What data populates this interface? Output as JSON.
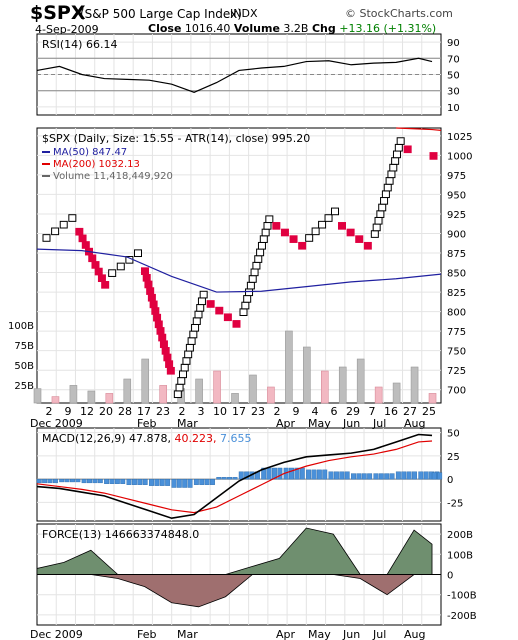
{
  "header": {
    "symbol": "$SPX",
    "description": "(S&P 500 Large Cap Index)",
    "exchange": "INDX",
    "brand": "© StockCharts.com",
    "date": "4-Sep-2009",
    "close_label": "Close",
    "close_value": "1016.40",
    "volume_label": "Volume",
    "volume_value": "3.2B",
    "chg_label": "Chg",
    "chg_value": "+13.16 (+1.31%)",
    "chg_color": "#008000"
  },
  "colors": {
    "up_box": "#ffffff",
    "down_box": "#e00040",
    "ma50": "#2020a0",
    "ma200": "#e00000",
    "volume_up": "#bdbdbd",
    "volume_down": "#f2b8c2",
    "macd_line": "#000000",
    "signal_line": "#e00000",
    "histogram": "#4a90d9",
    "force_pos": "#6f8f6f",
    "force_neg": "#9f6f6f"
  },
  "chart_data": [
    {
      "type": "line",
      "panel": "rsi",
      "label": "RSI(14) 66.14",
      "ylim": [
        0,
        100
      ],
      "ticks": [
        90,
        70,
        50,
        30,
        10
      ],
      "reference_lines": [
        70,
        50,
        30
      ],
      "x": [
        0,
        5,
        10,
        15,
        20,
        25,
        30,
        35,
        40,
        45,
        50,
        55,
        60,
        65,
        70,
        75,
        80,
        85,
        88
      ],
      "values": [
        55,
        60,
        50,
        45,
        44,
        43,
        38,
        28,
        40,
        55,
        58,
        60,
        66,
        67,
        62,
        64,
        65,
        70,
        66
      ]
    },
    {
      "type": "point-and-figure",
      "panel": "price",
      "label": "$SPX (Daily, Size: 15.55 - ATR(14), close) 995.20",
      "ylim": [
        683,
        1035
      ],
      "ticks": [
        1025,
        1000,
        975,
        950,
        925,
        900,
        875,
        850,
        825,
        800,
        775,
        750,
        725,
        700
      ],
      "volume_ticks": [
        "100B",
        "75B",
        "50B",
        "25B"
      ],
      "columns": [
        {
          "dir": "up",
          "low": 890,
          "high": 925
        },
        {
          "dir": "down",
          "low": 830,
          "high": 910
        },
        {
          "dir": "up",
          "low": 845,
          "high": 875
        },
        {
          "dir": "down",
          "low": 720,
          "high": 860
        },
        {
          "dir": "up",
          "low": 690,
          "high": 830
        },
        {
          "dir": "down",
          "low": 780,
          "high": 815
        },
        {
          "dir": "up",
          "low": 795,
          "high": 920
        },
        {
          "dir": "down",
          "low": 880,
          "high": 910
        },
        {
          "dir": "up",
          "low": 890,
          "high": 930
        },
        {
          "dir": "down",
          "low": 880,
          "high": 915
        },
        {
          "dir": "up",
          "low": 895,
          "high": 1025
        },
        {
          "dir": "down",
          "low": 995,
          "high": 1010
        }
      ],
      "series": [
        {
          "name": "MA(50) 847.47",
          "x": [
            0,
            10,
            20,
            30,
            40,
            50,
            60,
            70,
            80,
            90
          ],
          "values": [
            880,
            878,
            870,
            845,
            825,
            826,
            832,
            838,
            842,
            848
          ]
        },
        {
          "name": "MA(200) 1032.13",
          "x": [
            80,
            84,
            88,
            90
          ],
          "values": [
            1035,
            1034,
            1033,
            1032
          ]
        },
        {
          "name": "Volume 11,418,449,920",
          "x": [
            0,
            4,
            8,
            12,
            16,
            20,
            24,
            28,
            32,
            36,
            40,
            44,
            48,
            52,
            56,
            60,
            64,
            68,
            72,
            76,
            80,
            84,
            88
          ],
          "values": [
            18,
            8,
            22,
            15,
            12,
            30,
            55,
            22,
            18,
            30,
            40,
            12,
            35,
            20,
            90,
            70,
            40,
            45,
            55,
            20,
            25,
            45,
            12
          ]
        }
      ],
      "x_tick_labels": [
        "2",
        "9",
        "12",
        "20",
        "28",
        "17",
        "23",
        "2",
        "3",
        "10",
        "17",
        "23",
        "2",
        "9",
        "4",
        "6",
        "29",
        "7",
        "16",
        "27",
        "25"
      ],
      "month_labels": [
        "Dec 2009",
        "Feb",
        "Mar",
        "Apr",
        "May",
        "Jun",
        "Jul",
        "Aug"
      ]
    },
    {
      "type": "line",
      "panel": "macd",
      "label_prefix": "MACD(12,26,9)",
      "label_macd": "47.878",
      "label_signal": "40.223",
      "label_hist": "7.655",
      "ylim": [
        -45,
        55
      ],
      "ticks": [
        50,
        25,
        0,
        -25
      ],
      "x": [
        0,
        5,
        10,
        15,
        20,
        25,
        30,
        35,
        40,
        45,
        50,
        55,
        60,
        65,
        70,
        75,
        80,
        85,
        88
      ],
      "series": [
        {
          "name": "MACD",
          "values": [
            -8,
            -10,
            -14,
            -18,
            -26,
            -34,
            -42,
            -38,
            -20,
            -2,
            10,
            18,
            24,
            26,
            28,
            32,
            40,
            48,
            47
          ]
        },
        {
          "name": "Signal",
          "values": [
            -5,
            -8,
            -11,
            -15,
            -21,
            -27,
            -33,
            -36,
            -30,
            -18,
            -6,
            6,
            14,
            20,
            24,
            27,
            32,
            40,
            41
          ]
        },
        {
          "name": "Histogram",
          "values": [
            -4,
            -3,
            -4,
            -5,
            -6,
            -7,
            -9,
            -6,
            2,
            8,
            12,
            12,
            10,
            8,
            6,
            6,
            8,
            8,
            7
          ]
        }
      ]
    },
    {
      "type": "area",
      "panel": "force",
      "label": "FORCE(13) 146663374848.0",
      "ylim": [
        -250,
        250
      ],
      "ticks": [
        "200B",
        "100B",
        "0",
        "-100B",
        "-200B"
      ],
      "x": [
        0,
        6,
        12,
        18,
        24,
        30,
        36,
        42,
        48,
        54,
        60,
        66,
        72,
        78,
        84,
        88
      ],
      "values": [
        30,
        60,
        120,
        -20,
        -60,
        -140,
        -160,
        -110,
        40,
        80,
        230,
        200,
        -20,
        -100,
        220,
        150
      ]
    }
  ]
}
